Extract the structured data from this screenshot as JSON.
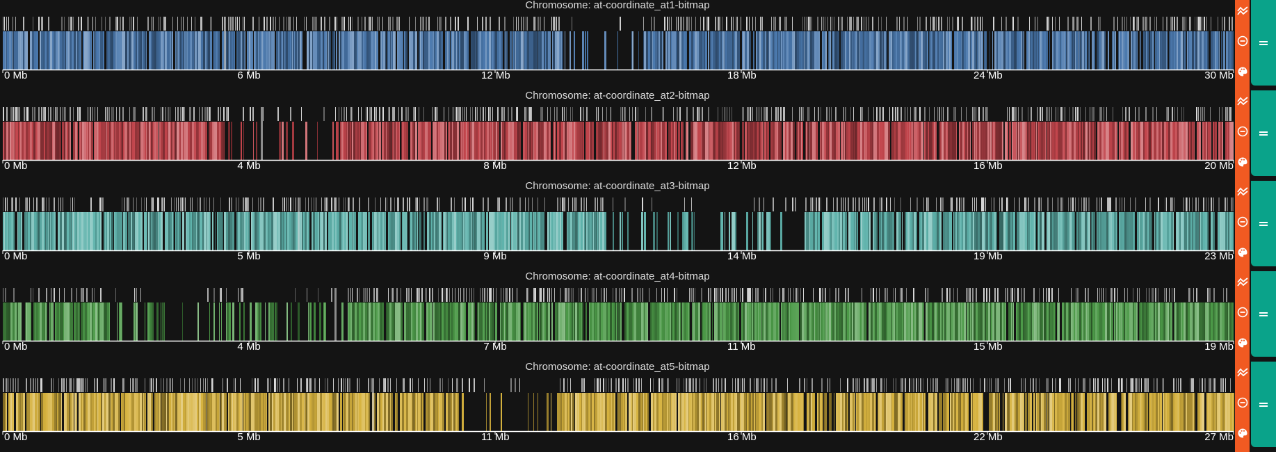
{
  "tracks": [
    {
      "title": "Chromosome: at-coordinate_at1-bitmap",
      "color": "#4a78ad",
      "ticks": [
        "0 Mb",
        "6 Mb",
        "12 Mb",
        "18 Mb",
        "24 Mb",
        "30 Mb"
      ],
      "gaps": [
        [
          0.455,
          0.52
        ]
      ]
    },
    {
      "title": "Chromosome: at-coordinate_at2-bitmap",
      "color": "#c2454c",
      "ticks": [
        "0 Mb",
        "4 Mb",
        "8 Mb",
        "12 Mb",
        "16 Mb",
        "20 Mb"
      ],
      "gaps": [
        [
          0.18,
          0.27
        ]
      ]
    },
    {
      "title": "Chromosome: at-coordinate_at3-bitmap",
      "color": "#5fb3ac",
      "ticks": [
        "0 Mb",
        "5 Mb",
        "9 Mb",
        "14 Mb",
        "19 Mb",
        "23 Mb"
      ],
      "gaps": [
        [
          0.49,
          0.65
        ]
      ]
    },
    {
      "title": "Chromosome: at-coordinate_at4-bitmap",
      "color": "#4c9a48",
      "ticks": [
        "0 Mb",
        "4 Mb",
        "7 Mb",
        "11 Mb",
        "15 Mb",
        "19 Mb"
      ],
      "gaps": [
        [
          0.085,
          0.28
        ]
      ]
    },
    {
      "title": "Chromosome: at-coordinate_at5-bitmap",
      "color": "#d6b23e",
      "ticks": [
        "0 Mb",
        "5 Mb",
        "11 Mb",
        "16 Mb",
        "22 Mb",
        "27 Mb"
      ],
      "gaps": [
        [
          0.37,
          0.45
        ]
      ]
    }
  ],
  "controls": {
    "accent": "#f15a22",
    "handle_color": "#0aa38a",
    "icons": [
      "area-chart-icon",
      "minus-circle-icon",
      "palette-icon"
    ],
    "handle_icon": "drag-handle-icon"
  }
}
